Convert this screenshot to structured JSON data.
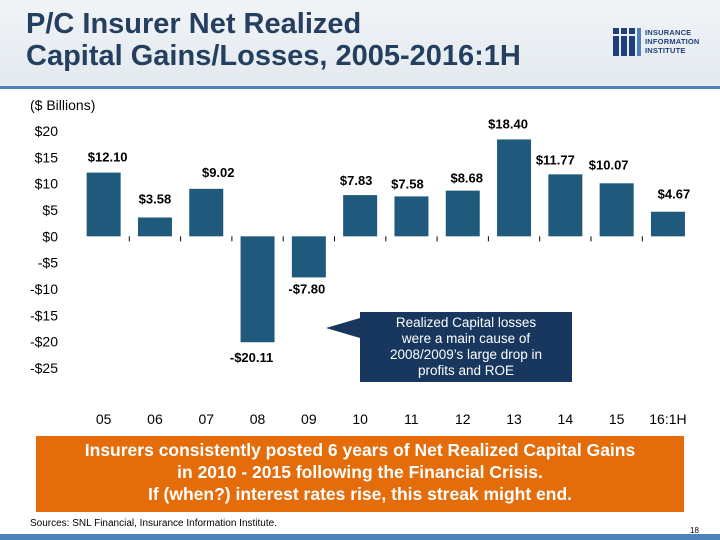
{
  "slide": {
    "title_lines": [
      "P/C Insurer Net Realized",
      "Capital Gains/Losses, 2005-2016:1H"
    ],
    "units_label": "($ Billions)",
    "logo": {
      "lines": [
        "INSURANCE",
        "INFORMATION",
        "INSTITUTE"
      ],
      "color": "#1f3f7a"
    },
    "callout_lines": [
      "Realized Capital losses",
      "were a main cause of",
      "2008/2009’s large drop in",
      "profits and ROE"
    ],
    "banner_lines": [
      "Insurers consistently posted 6 years of Net Realized Capital Gains",
      "in 2010 - 2015 following the Financial Crisis.",
      "If (when?) interest rates rise, this streak might end."
    ],
    "sources": "Sources: SNL Financial, Insurance Information Institute.",
    "page_number": "18",
    "colors": {
      "title": "#243f60",
      "accent_rule": "#4f81bd",
      "bar": "#1f5a7d",
      "callout": "#17375e",
      "banner": "#e46c0a"
    }
  },
  "chart_data": {
    "type": "bar",
    "title": "",
    "xlabel": "",
    "ylabel": "",
    "categories": [
      "05",
      "06",
      "07",
      "08",
      "09",
      "10",
      "11",
      "12",
      "13",
      "14",
      "15",
      "16:1H"
    ],
    "values": [
      12.1,
      3.58,
      9.02,
      -20.11,
      -7.8,
      7.83,
      7.58,
      8.68,
      18.4,
      11.77,
      10.07,
      4.67
    ],
    "data_labels": [
      "$12.10",
      "$3.58",
      "$9.02",
      "-$20.11",
      "-$7.80",
      "$7.83",
      "$7.58",
      "$8.68",
      "$18.40",
      "$11.77",
      "$10.07",
      "$4.67"
    ],
    "ylim": [
      -25,
      20
    ],
    "y_ticks": [
      20,
      15,
      10,
      5,
      0,
      -5,
      -10,
      -15,
      -20,
      -25
    ],
    "y_tick_labels": [
      "$20",
      "$15",
      "$10",
      "$5",
      "$0",
      "-$5",
      "-$10",
      "-$15",
      "-$20",
      "-$25"
    ],
    "grid": false,
    "legend": "none"
  }
}
